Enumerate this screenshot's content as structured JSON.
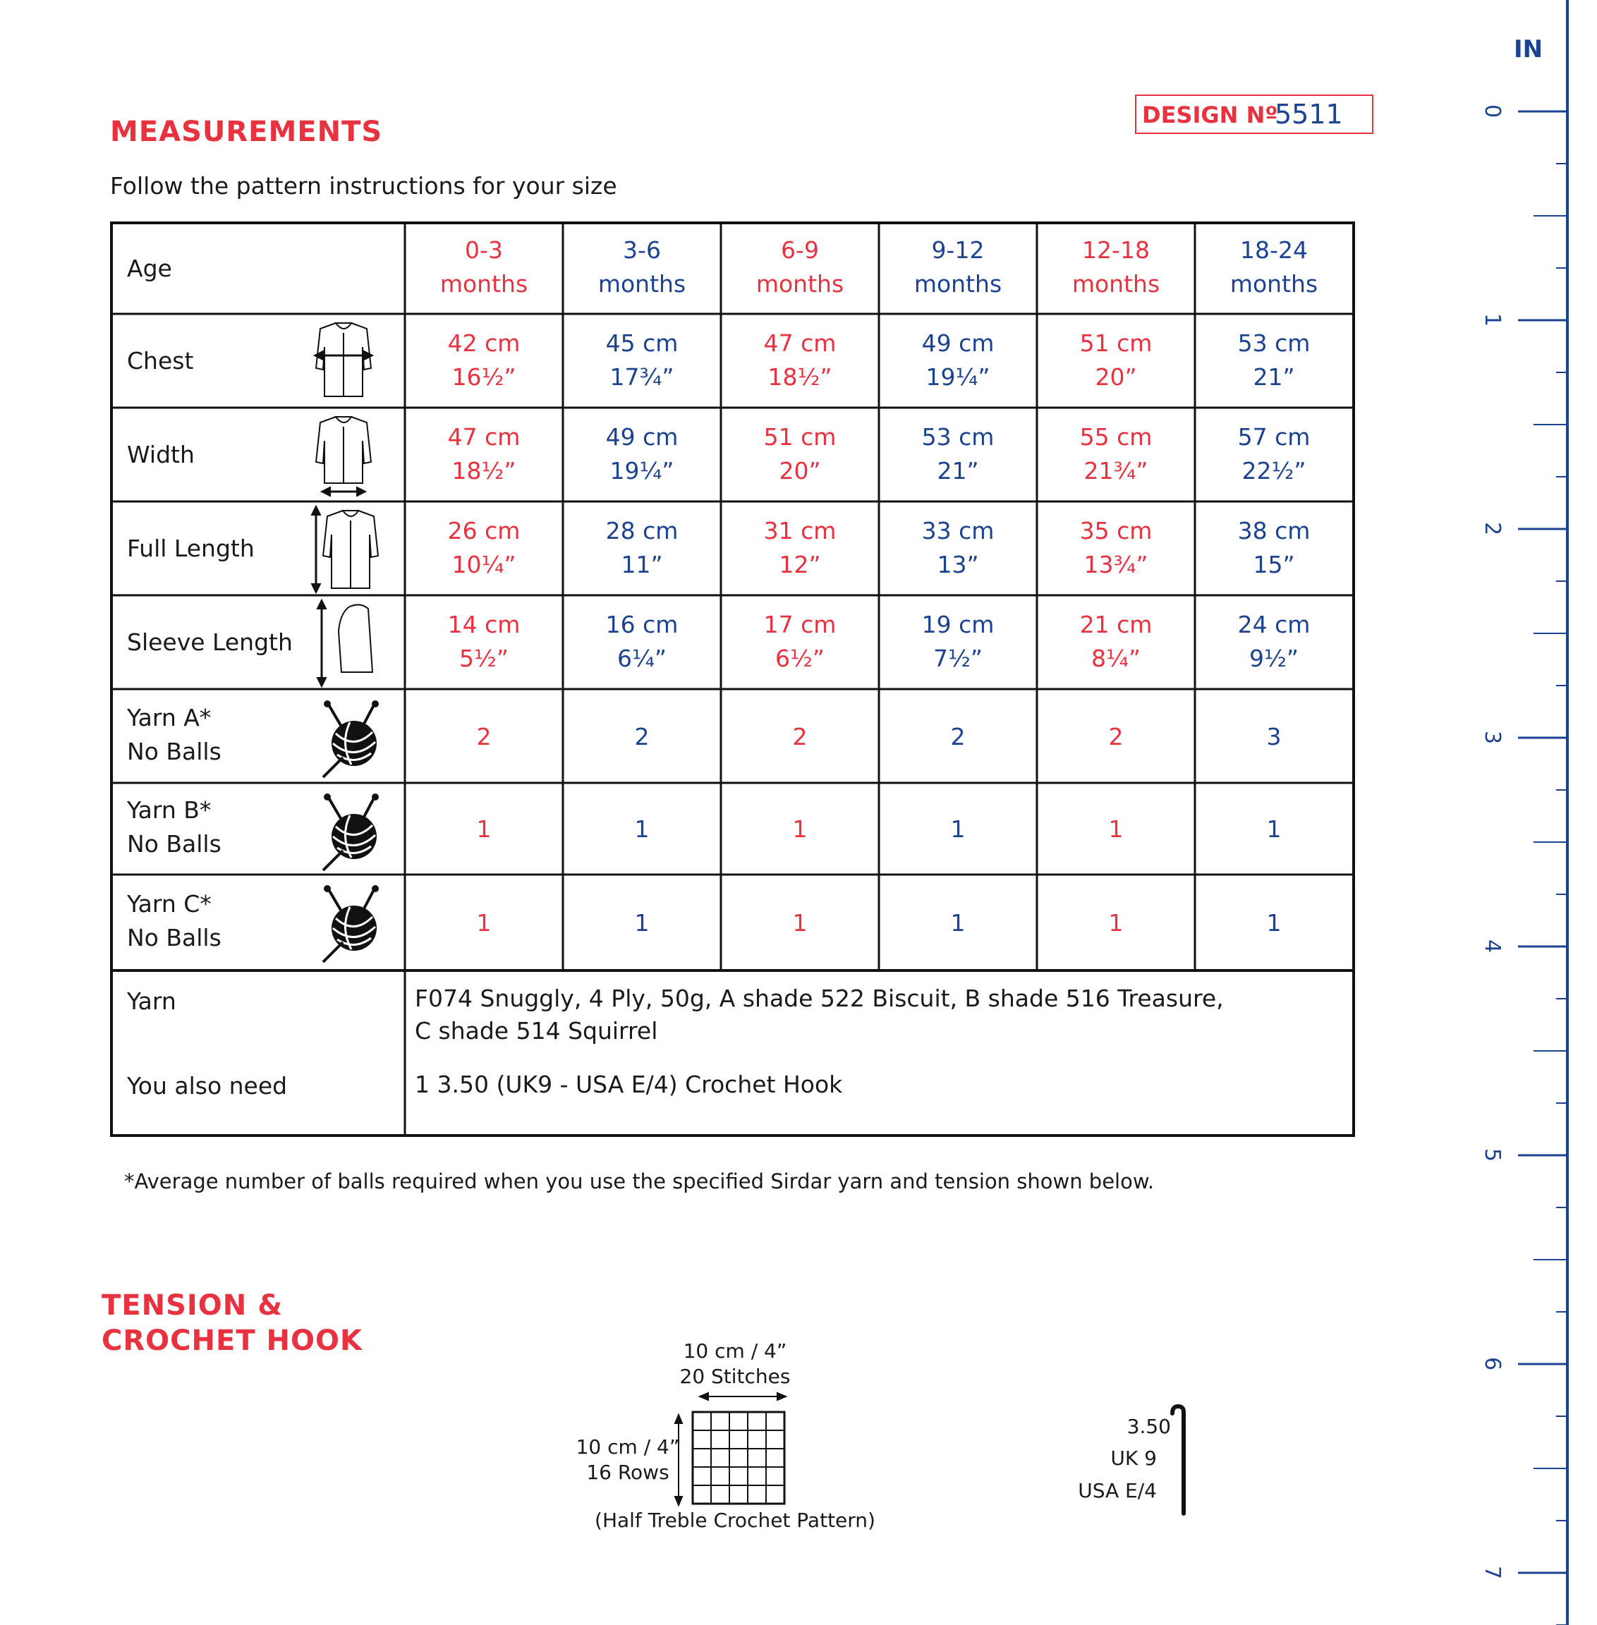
{
  "design": {
    "label": "DESIGN Nº",
    "number": "5511"
  },
  "measurements": {
    "title": "MEASUREMENTS",
    "subtitle": "Follow the pattern instructions for your size",
    "sizes": [
      {
        "age_top": "0-3",
        "age_bottom": "months",
        "color": "red"
      },
      {
        "age_top": "3-6",
        "age_bottom": "months",
        "color": "blue"
      },
      {
        "age_top": "6-9",
        "age_bottom": "months",
        "color": "red"
      },
      {
        "age_top": "9-12",
        "age_bottom": "months",
        "color": "blue"
      },
      {
        "age_top": "12-18",
        "age_bottom": "months",
        "color": "red"
      },
      {
        "age_top": "18-24",
        "age_bottom": "months",
        "color": "blue"
      }
    ],
    "rows": [
      {
        "label": "Age"
      },
      {
        "label": "Chest",
        "icon": "cardigan-chest-icon",
        "values": [
          [
            "42 cm",
            "16½”"
          ],
          [
            "45 cm",
            "17¾”"
          ],
          [
            "47 cm",
            "18½”"
          ],
          [
            "49 cm",
            "19¼”"
          ],
          [
            "51 cm",
            "20”"
          ],
          [
            "53 cm",
            "21”"
          ]
        ]
      },
      {
        "label": "Width",
        "icon": "cardigan-width-icon",
        "values": [
          [
            "47 cm",
            "18½”"
          ],
          [
            "49 cm",
            "19¼”"
          ],
          [
            "51 cm",
            "20”"
          ],
          [
            "53 cm",
            "21”"
          ],
          [
            "55 cm",
            "21¾”"
          ],
          [
            "57 cm",
            "22½”"
          ]
        ]
      },
      {
        "label": "Full Length",
        "icon": "cardigan-length-icon",
        "values": [
          [
            "26 cm",
            "10¼”"
          ],
          [
            "28 cm",
            "11”"
          ],
          [
            "31 cm",
            "12”"
          ],
          [
            "33 cm",
            "13”"
          ],
          [
            "35 cm",
            "13¾”"
          ],
          [
            "38 cm",
            "15”"
          ]
        ]
      },
      {
        "label": "Sleeve Length",
        "icon": "sleeve-length-icon",
        "values": [
          [
            "14 cm",
            "5½”"
          ],
          [
            "16 cm",
            "6¼”"
          ],
          [
            "17 cm",
            "6½”"
          ],
          [
            "19 cm",
            "7½”"
          ],
          [
            "21 cm",
            "8¼”"
          ],
          [
            "24 cm",
            "9½”"
          ]
        ]
      },
      {
        "label": "Yarn A*",
        "label2": "No Balls",
        "icon": "yarn-ball-icon",
        "values": [
          [
            "2"
          ],
          [
            "2"
          ],
          [
            "2"
          ],
          [
            "2"
          ],
          [
            "2"
          ],
          [
            "3"
          ]
        ]
      },
      {
        "label": "Yarn B*",
        "label2": "No Balls",
        "icon": "yarn-ball-icon",
        "values": [
          [
            "1"
          ],
          [
            "1"
          ],
          [
            "1"
          ],
          [
            "1"
          ],
          [
            "1"
          ],
          [
            "1"
          ]
        ]
      },
      {
        "label": "Yarn C*",
        "label2": "No Balls",
        "icon": "yarn-ball-icon",
        "values": [
          [
            "1"
          ],
          [
            "1"
          ],
          [
            "1"
          ],
          [
            "1"
          ],
          [
            "1"
          ],
          [
            "1"
          ]
        ]
      }
    ],
    "yarn_label": "Yarn",
    "yarn_line1": "F074 Snuggly, 4 Ply, 50g, A shade 522 Biscuit, B shade 516 Treasure,",
    "yarn_line2": "C shade 514 Squirrel",
    "also_label": "You also need",
    "also_value": "1 3.50 (UK9 - USA E/4) Crochet Hook",
    "footnote": "*Average number of balls required when you use the specified Sirdar yarn and tension shown below."
  },
  "tension": {
    "title_line1": "TENSION &",
    "title_line2": "CROCHET HOOK",
    "width_label": "10 cm / 4”",
    "stitches_label": "20 Stitches",
    "height_label": "10 cm / 4”",
    "rows_label": "16 Rows",
    "pattern_label": "(Half Treble Crochet Pattern)",
    "hook_size": "3.50",
    "hook_uk": "UK 9",
    "hook_usa": "USA E/4"
  },
  "ruler": {
    "unit": "IN",
    "marks": [
      "0",
      "1",
      "2",
      "3",
      "4",
      "5",
      "6",
      "7"
    ]
  },
  "colors": {
    "red": "#e8323f",
    "blue": "#1b4391"
  }
}
